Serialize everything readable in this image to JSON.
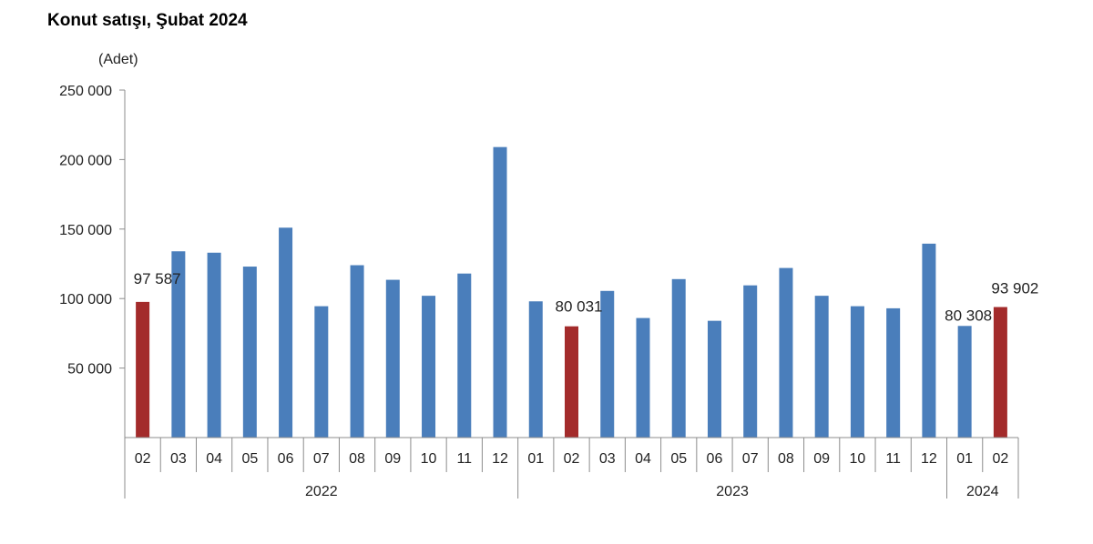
{
  "title": "Konut satışı, Şubat 2024",
  "chart_data": {
    "type": "bar",
    "title": "Konut satışı, Şubat 2024",
    "unit_label": "(Adet)",
    "ylim": [
      0,
      250000
    ],
    "y_ticks": [
      {
        "value": 50000,
        "label": "50 000"
      },
      {
        "value": 100000,
        "label": "100 000"
      },
      {
        "value": 150000,
        "label": "150 000"
      },
      {
        "value": 200000,
        "label": "200 000"
      },
      {
        "value": 250000,
        "label": "250 000"
      }
    ],
    "colors": {
      "regular": "#4a7ebb",
      "highlight": "#a32b2b"
    },
    "categories": [
      "02",
      "03",
      "04",
      "05",
      "06",
      "07",
      "08",
      "09",
      "10",
      "11",
      "12",
      "01",
      "02",
      "03",
      "04",
      "05",
      "06",
      "07",
      "08",
      "09",
      "10",
      "11",
      "12",
      "01",
      "02"
    ],
    "values": [
      97587,
      134000,
      133000,
      123000,
      151000,
      94500,
      124000,
      113500,
      102000,
      118000,
      209000,
      98000,
      80031,
      105500,
      86000,
      114000,
      84000,
      109500,
      122000,
      102000,
      94500,
      93000,
      139500,
      80308,
      93902
    ],
    "highlighted": [
      0,
      12,
      24
    ],
    "data_labels": [
      {
        "index": 0,
        "text": "97 587"
      },
      {
        "index": 12,
        "text": "80 031"
      },
      {
        "index": 23,
        "text": "80 308"
      },
      {
        "index": 24,
        "text": "93 902"
      }
    ],
    "year_groups": [
      {
        "label": "2022",
        "start": 0,
        "end": 10
      },
      {
        "label": "2023",
        "start": 11,
        "end": 22
      },
      {
        "label": "2024",
        "start": 23,
        "end": 24
      }
    ],
    "grid": false,
    "legend": "none"
  }
}
